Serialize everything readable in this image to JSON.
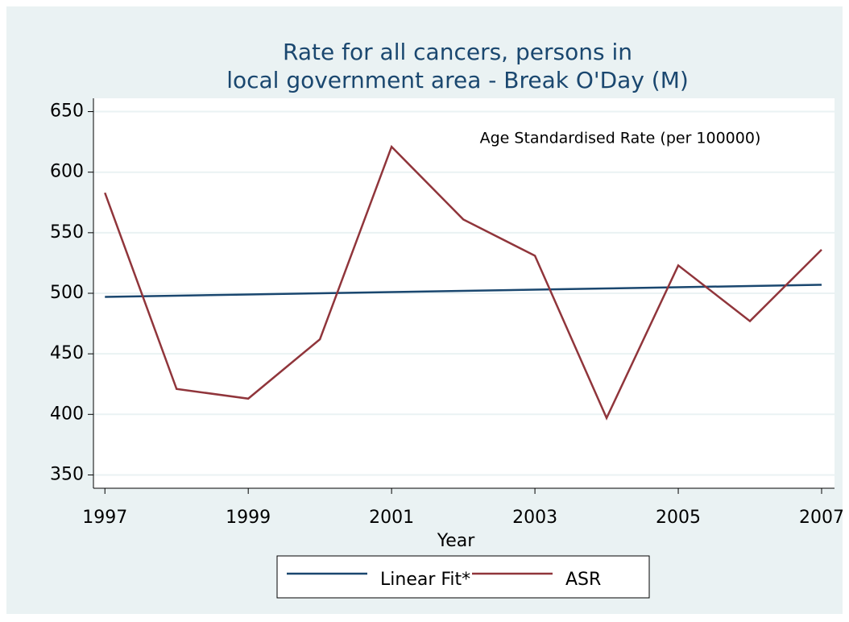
{
  "chart_data": {
    "type": "line",
    "title": [
      "Rate for all cancers, persons in",
      "local government area - Break O'Day (M)"
    ],
    "annotation": "Age Standardised Rate (per 100000)",
    "x_label": "Year",
    "x": [
      1997,
      1998,
      1999,
      2000,
      2001,
      2002,
      2003,
      2004,
      2005,
      2006,
      2007
    ],
    "series": [
      {
        "name": "Linear Fit*",
        "color": "#1a476f",
        "values": [
          497,
          498,
          499,
          500,
          501,
          502,
          503,
          504,
          505,
          506,
          507
        ]
      },
      {
        "name": "ASR",
        "color": "#90353b",
        "values": [
          583,
          421,
          413,
          462,
          621,
          561,
          531,
          397,
          523,
          477,
          536
        ]
      }
    ],
    "xlim": [
      1996.84,
      2007.18
    ],
    "ylim": [
      339,
      661
    ],
    "xticks": [
      1997,
      1999,
      2001,
      2003,
      2005,
      2007
    ],
    "yticks": [
      350,
      400,
      450,
      500,
      550,
      600,
      650
    ],
    "grid": true,
    "legend": "bottom"
  }
}
